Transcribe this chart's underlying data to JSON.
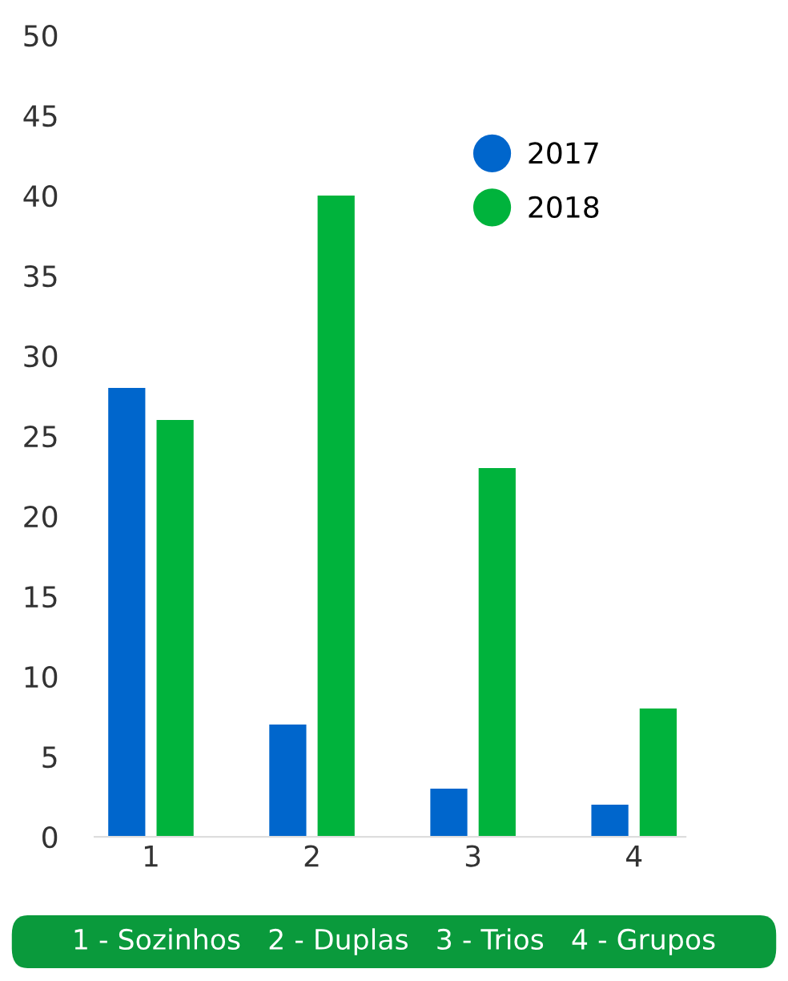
{
  "chart_data": {
    "type": "bar",
    "categories": [
      "1",
      "2",
      "3",
      "4"
    ],
    "series": [
      {
        "name": "2017",
        "color": "#0066cc",
        "values": [
          28,
          7,
          3,
          2
        ]
      },
      {
        "name": "2018",
        "color": "#00b33c",
        "values": [
          26,
          40,
          23,
          8
        ]
      }
    ],
    "ylim": [
      0,
      50
    ],
    "yticks": [
      0,
      5,
      10,
      15,
      20,
      25,
      30,
      35,
      40,
      45,
      50
    ],
    "grid": false,
    "legend": "top right",
    "annotations": [
      "1 - Sozinhos   2 - Duplas   3 - Trios   4 - Grupos"
    ]
  }
}
